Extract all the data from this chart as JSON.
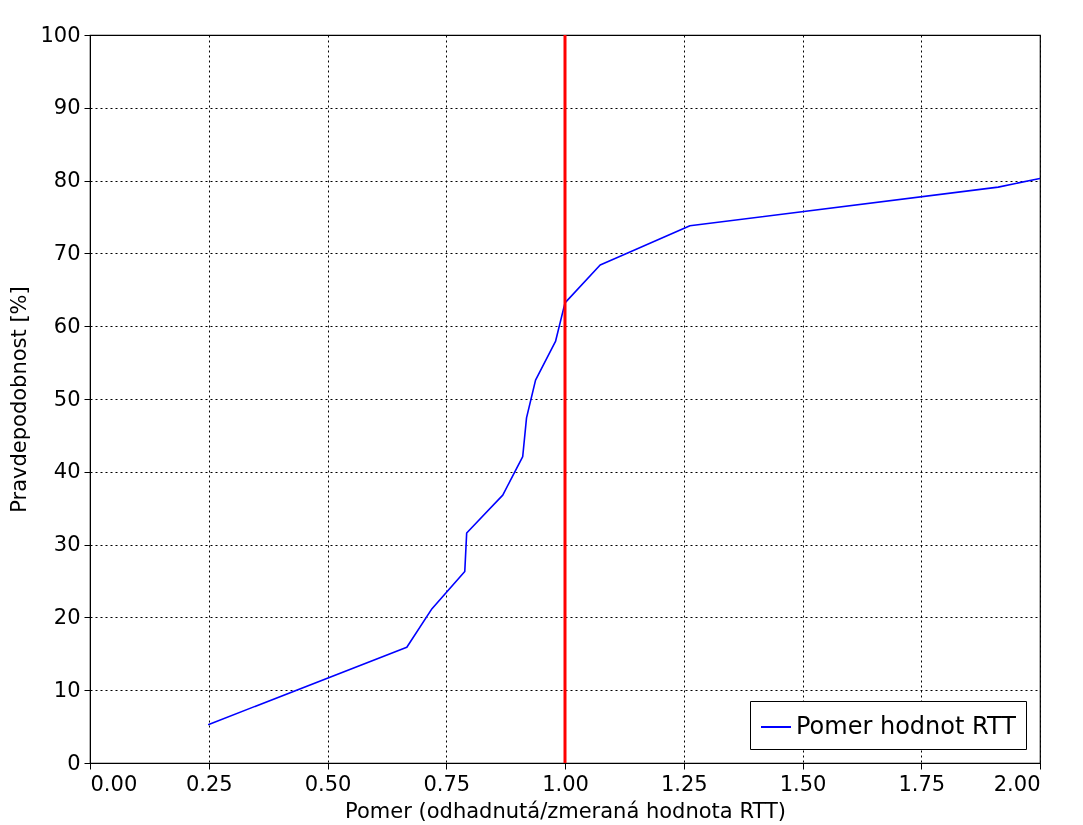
{
  "chart_data": {
    "type": "line",
    "xlabel": "Pomer (odhadnutá/zmeraná hodnota RTT)",
    "ylabel": "Pravdepodobnost [%]",
    "xlim": [
      0,
      2
    ],
    "ylim": [
      0,
      100
    ],
    "xticks": [
      {
        "value": 0,
        "label": "0.00"
      },
      {
        "value": 0.25,
        "label": "0.25"
      },
      {
        "value": 0.5,
        "label": "0.50"
      },
      {
        "value": 0.75,
        "label": "0.75"
      },
      {
        "value": 1,
        "label": "1.00"
      },
      {
        "value": 1.25,
        "label": "1.25"
      },
      {
        "value": 1.5,
        "label": "1.50"
      },
      {
        "value": 1.75,
        "label": "1.75"
      },
      {
        "value": 2,
        "label": "2.00"
      }
    ],
    "yticks": [
      0,
      10,
      20,
      30,
      40,
      50,
      60,
      70,
      80,
      90,
      100
    ],
    "grid": true,
    "legend": "bottom right",
    "line_style": "solid",
    "series": [
      {
        "name": "Pomer hodnot RTT",
        "color": "#0000ff",
        "x": [
          0.25,
          0.667,
          0.72,
          0.789,
          0.793,
          0.869,
          0.911,
          0.919,
          0.938,
          0.98,
          1.0,
          1.074,
          1.263,
          1.912,
          2.0
        ],
        "values": [
          5.3,
          15.9,
          21.2,
          26.3,
          31.6,
          36.8,
          42.1,
          47.4,
          52.6,
          57.9,
          63.2,
          68.4,
          73.8,
          79.1,
          80.3
        ]
      }
    ],
    "ref_lines": [
      {
        "axis": "x",
        "value": 1.0,
        "color": "#ff0000"
      }
    ]
  }
}
